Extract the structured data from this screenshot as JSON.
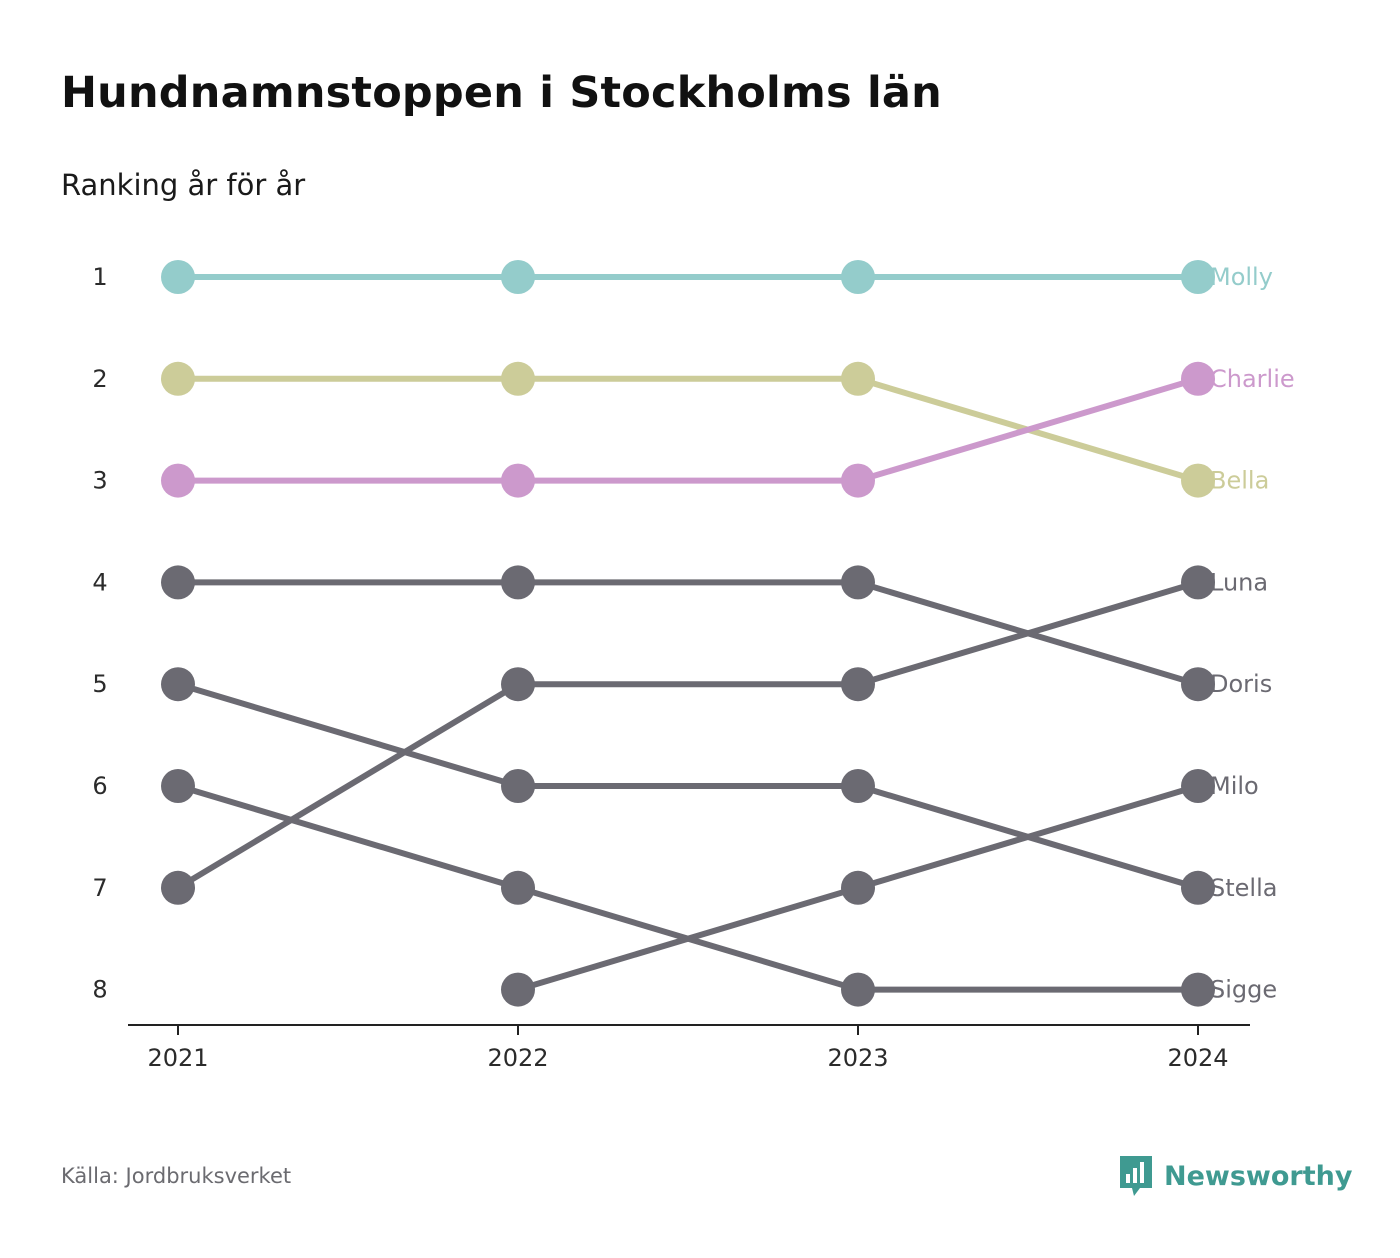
{
  "title": "Hundnamnstoppen i Stockholms län",
  "subtitle": "Ranking år för år",
  "source": "Källa: Jordbruksverket",
  "logo": {
    "text": "Newsworthy",
    "icon": "newsworthy-chat-bars-icon",
    "color": "#3f9a91"
  },
  "chart_data": {
    "type": "line",
    "subtype": "bump",
    "x": [
      "2021",
      "2022",
      "2023",
      "2024"
    ],
    "yticks": [
      "1",
      "2",
      "3",
      "4",
      "5",
      "6",
      "7",
      "8"
    ],
    "ylim": [
      1,
      8
    ],
    "y_reversed": true,
    "grid": false,
    "legend": "none",
    "series": [
      {
        "name": "Molly",
        "color": "#94cccb",
        "ranks": [
          1,
          1,
          1,
          1
        ]
      },
      {
        "name": "Charlie",
        "color": "#cc99cc",
        "ranks": [
          3,
          3,
          3,
          2
        ]
      },
      {
        "name": "Bella",
        "color": "#cccc99",
        "ranks": [
          2,
          2,
          2,
          3
        ]
      },
      {
        "name": "Luna",
        "color": "#6b6a72",
        "ranks": [
          7,
          5,
          5,
          4
        ]
      },
      {
        "name": "Doris",
        "color": "#6b6a72",
        "ranks": [
          4,
          4,
          4,
          5
        ]
      },
      {
        "name": "Milo",
        "color": "#6b6a72",
        "ranks": [
          null,
          8,
          7,
          6
        ]
      },
      {
        "name": "Stella",
        "color": "#6b6a72",
        "ranks": [
          5,
          6,
          6,
          7
        ]
      },
      {
        "name": "Sigge",
        "color": "#6b6a72",
        "ranks": [
          6,
          7,
          8,
          8
        ]
      }
    ]
  }
}
